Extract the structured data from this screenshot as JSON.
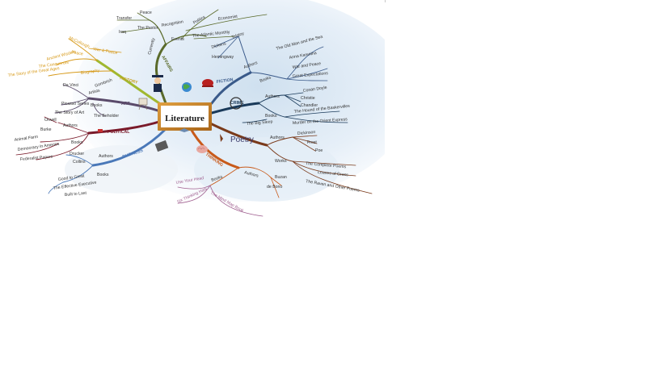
{
  "center": {
    "label": "Literature"
  },
  "colors": {
    "affairs": "#5a6a2a",
    "history": "#a0b830",
    "history_leaf": "#d79a1a",
    "art": "#5a4a6a",
    "political": "#7a1a2a",
    "business": "#4a78b8",
    "fiction": "#3a5a8a",
    "crime": "#1a3a5a",
    "poetry": "#7a3a1a",
    "thinking": "#c85a1a",
    "thinking_leaf": "#a06090"
  },
  "branches": {
    "affairs": {
      "title": "AFFAIRS",
      "items": [
        "Transfer",
        "Peace",
        "Iraq",
        "The Pastor",
        "Events",
        "Recognition",
        "Politics",
        "Economist",
        "The Atlantic Monthly",
        "Currently"
      ]
    },
    "history": {
      "title": "HISTORY",
      "items": [
        "McCullough",
        "Peace",
        "War & Peace",
        "The Conquerors",
        "Ancient Wisdom",
        "Biography",
        "The Story of the Great Ages"
      ]
    },
    "art": {
      "title": "ART",
      "items": [
        "Gombrich",
        "Artists",
        "Da Vinci",
        "Picasso Series",
        "Books",
        "The Story of Art",
        "The Beholder"
      ]
    },
    "political": {
      "title": "POLITICAL",
      "items": [
        "Authors",
        "Orwell",
        "Burke",
        "Books",
        "Animal Farm",
        "Democracy in America",
        "Federalist Papers"
      ]
    },
    "business": {
      "title": "BUSINESS",
      "items": [
        "Authors",
        "Drucker",
        "Collins",
        "Books",
        "Good to Great",
        "The Effective Executive",
        "Built to Last"
      ]
    },
    "fiction": {
      "title": "FICTION",
      "items": [
        "Authors",
        "Tolstoy",
        "Dickens",
        "Hemingway",
        "Books",
        "Anna Karenina",
        "War and Peace",
        "Great Expectations",
        "The Old Man and the Sea"
      ]
    },
    "crime": {
      "title": "CRIME",
      "items": [
        "Authors",
        "Conan Doyle",
        "Christie",
        "Chandler",
        "Books",
        "The Hound of the Baskervilles",
        "Murder on the Orient Express",
        "The Big Sleep"
      ]
    },
    "poetry": {
      "title": "Poetry",
      "items": [
        "Authors",
        "Dickinson",
        "Frost",
        "Poe",
        "Works",
        "The Complete Poems",
        "Leaves of Grass",
        "The Raven and Other Poems"
      ]
    },
    "thinking": {
      "title": "THINKING",
      "items": [
        "Authors",
        "Buzan",
        "de Bono",
        "Books",
        "Use Your Head",
        "Six Thinking Hats",
        "The Mind Map Book"
      ]
    }
  }
}
